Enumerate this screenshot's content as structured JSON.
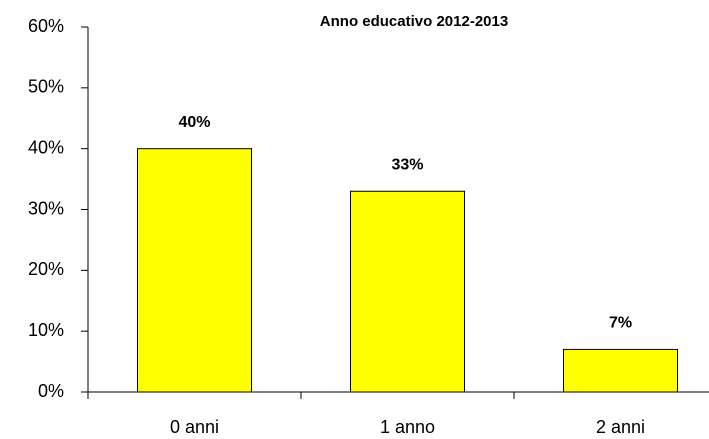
{
  "chart_data": {
    "type": "bar",
    "title": "Anno educativo 2012-2013",
    "categories": [
      "0 anni",
      "1 anno",
      "2 anni"
    ],
    "values": [
      40,
      33,
      7
    ],
    "value_labels": [
      "40%",
      "33%",
      "7%"
    ],
    "color": "#ffff00",
    "ylim": [
      0,
      60
    ],
    "yticks": [
      {
        "value": 0,
        "label": "0%"
      },
      {
        "value": 10,
        "label": "10%"
      },
      {
        "value": 20,
        "label": "20%"
      },
      {
        "value": 30,
        "label": "30%"
      },
      {
        "value": 40,
        "label": "40%"
      },
      {
        "value": 50,
        "label": "50%"
      },
      {
        "value": 60,
        "label": "60%"
      }
    ],
    "grid": false
  }
}
